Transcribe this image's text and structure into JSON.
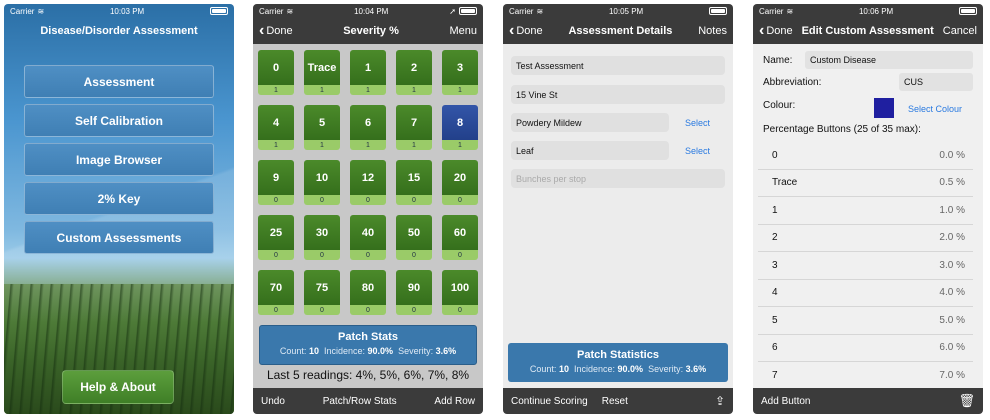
{
  "screen1": {
    "status": {
      "carrier": "Carrier",
      "time": "10:03 PM"
    },
    "title": "Disease/Disorder Assessment",
    "menu": [
      "Assessment",
      "Self Calibration",
      "Image Browser",
      "2% Key",
      "Custom Assessments"
    ],
    "help_label": "Help & About"
  },
  "screen2": {
    "status": {
      "carrier": "Carrier",
      "time": "10:04 PM"
    },
    "nav": {
      "back": "Done",
      "title": "Severity %",
      "right": "Menu"
    },
    "cells": [
      {
        "label": "0",
        "count": "1"
      },
      {
        "label": "Trace",
        "count": "1"
      },
      {
        "label": "1",
        "count": "1"
      },
      {
        "label": "2",
        "count": "1"
      },
      {
        "label": "3",
        "count": "1"
      },
      {
        "label": "4",
        "count": "1"
      },
      {
        "label": "5",
        "count": "1"
      },
      {
        "label": "6",
        "count": "1"
      },
      {
        "label": "7",
        "count": "1"
      },
      {
        "label": "8",
        "count": "1"
      },
      {
        "label": "9",
        "count": "0"
      },
      {
        "label": "10",
        "count": "0"
      },
      {
        "label": "12",
        "count": "0"
      },
      {
        "label": "15",
        "count": "0"
      },
      {
        "label": "20",
        "count": "0"
      },
      {
        "label": "25",
        "count": "0"
      },
      {
        "label": "30",
        "count": "0"
      },
      {
        "label": "40",
        "count": "0"
      },
      {
        "label": "50",
        "count": "0"
      },
      {
        "label": "60",
        "count": "0"
      },
      {
        "label": "70",
        "count": "0"
      },
      {
        "label": "75",
        "count": "0"
      },
      {
        "label": "80",
        "count": "0"
      },
      {
        "label": "90",
        "count": "0"
      },
      {
        "label": "100",
        "count": "0"
      }
    ],
    "selected_index": 9,
    "stats": {
      "title": "Patch Stats",
      "count_label": "Count:",
      "count": "10",
      "incidence_label": "Incidence:",
      "incidence": "90.0%",
      "severity_label": "Severity:",
      "severity": "3.6%"
    },
    "last5": "Last 5 readings: 4%, 5%, 6%, 7%, 8%",
    "bottom": {
      "left": "Undo",
      "center": "Patch/Row Stats",
      "right": "Add Row"
    }
  },
  "screen3": {
    "status": {
      "carrier": "Carrier",
      "time": "10:05 PM"
    },
    "nav": {
      "back": "Done",
      "title": "Assessment Details",
      "right": "Notes"
    },
    "fields": {
      "name": "Test Assessment",
      "address": "15 Vine St",
      "disease": "Powdery Mildew",
      "part": "Leaf",
      "bunches_placeholder": "Bunches per stop"
    },
    "select1": "Select",
    "select2": "Select",
    "stats": {
      "title": "Patch Statistics",
      "count_label": "Count:",
      "count": "10",
      "incidence_label": "Incidence:",
      "incidence": "90.0%",
      "severity_label": "Severity:",
      "severity": "3.6%"
    },
    "bottom": {
      "left": "Continue Scoring",
      "center": "Reset"
    }
  },
  "screen4": {
    "status": {
      "carrier": "Carrier",
      "time": "10:06 PM"
    },
    "nav": {
      "back": "Done",
      "title": "Edit Custom Assessment",
      "right": "Cancel"
    },
    "name_label": "Name:",
    "name_value": "Custom Disease",
    "abbr_label": "Abbreviation:",
    "abbr_value": "CUS",
    "colour_label": "Colour:",
    "colour_value": "#1f1fa0",
    "select_colour": "Select Colour",
    "pct_heading": "Percentage Buttons (25 of 35 max):",
    "rows": [
      {
        "label": "0",
        "pct": "0.0 %"
      },
      {
        "label": "Trace",
        "pct": "0.5 %"
      },
      {
        "label": "1",
        "pct": "1.0 %"
      },
      {
        "label": "2",
        "pct": "2.0 %"
      },
      {
        "label": "3",
        "pct": "3.0 %"
      },
      {
        "label": "4",
        "pct": "4.0 %"
      },
      {
        "label": "5",
        "pct": "5.0 %"
      },
      {
        "label": "6",
        "pct": "6.0 %"
      },
      {
        "label": "7",
        "pct": "7.0 %"
      }
    ],
    "bottom": {
      "left": "Add Button"
    }
  },
  "colors": {
    "green": "#3f7f27",
    "blue": "#3a78ac",
    "selected": "#22408a",
    "link": "#2a7ae0"
  }
}
